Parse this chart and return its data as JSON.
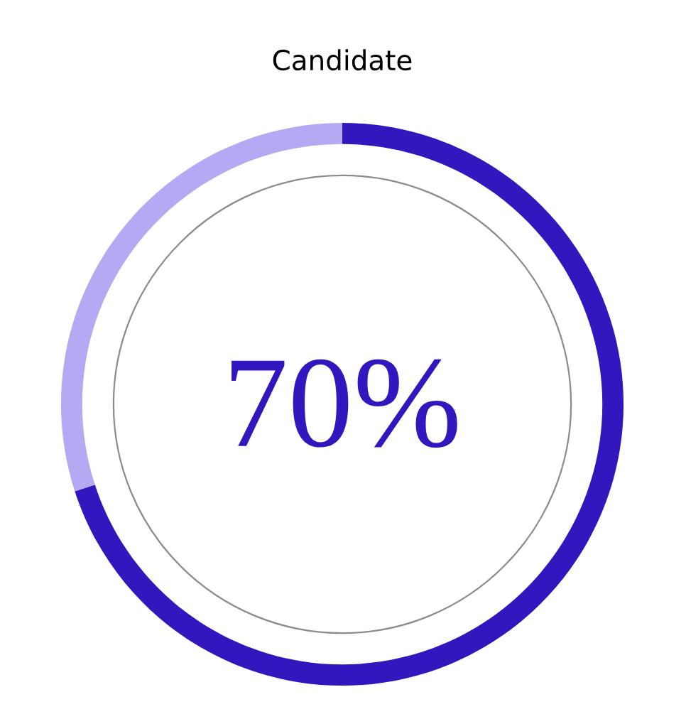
{
  "chart_data": {
    "type": "donut",
    "title": "Candidate",
    "categories": [
      null,
      null
    ],
    "values": [
      70,
      30
    ],
    "colors": [
      "#3216be",
      "#b4a9f3"
    ],
    "annotations": [
      "70%"
    ]
  }
}
